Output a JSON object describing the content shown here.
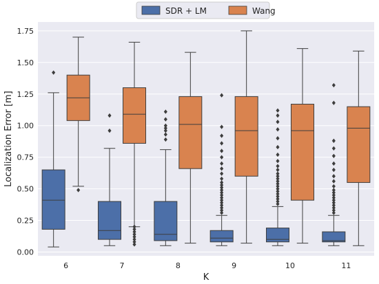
{
  "chart_data": {
    "type": "box",
    "xlabel": "K",
    "ylabel": "Localization Error [m]",
    "categories": [
      "6",
      "7",
      "8",
      "9",
      "10",
      "11"
    ],
    "ylim": [
      -0.03,
      1.82
    ],
    "yticks": [
      "0.00",
      "0.25",
      "0.50",
      "0.75",
      "1.00",
      "1.25",
      "1.50",
      "1.75"
    ],
    "grid": true,
    "legend_position": "top-center",
    "series": [
      {
        "name": "SDR + LM",
        "color": "#4c6fa8",
        "boxes": [
          {
            "min": 0.04,
            "q1": 0.18,
            "median": 0.41,
            "q3": 0.65,
            "max": 1.26,
            "outliers": [
              1.42
            ]
          },
          {
            "min": 0.05,
            "q1": 0.1,
            "median": 0.17,
            "q3": 0.4,
            "max": 0.82,
            "outliers": [
              0.96,
              1.08
            ]
          },
          {
            "min": 0.05,
            "q1": 0.09,
            "median": 0.14,
            "q3": 0.4,
            "max": 0.81,
            "outliers": [
              0.89,
              0.93,
              0.96,
              0.98,
              1.0,
              1.05,
              1.11
            ]
          },
          {
            "min": 0.05,
            "q1": 0.08,
            "median": 0.11,
            "q3": 0.17,
            "max": 0.29,
            "outliers": [
              0.31,
              0.33,
              0.35,
              0.37,
              0.39,
              0.41,
              0.43,
              0.45,
              0.47,
              0.49,
              0.51,
              0.53,
              0.55,
              0.58,
              0.62,
              0.66,
              0.7,
              0.75,
              0.8,
              0.86,
              0.92,
              0.99,
              1.24
            ]
          },
          {
            "min": 0.05,
            "q1": 0.08,
            "median": 0.1,
            "q3": 0.19,
            "max": 0.36,
            "outliers": [
              0.38,
              0.4,
              0.42,
              0.44,
              0.46,
              0.48,
              0.5,
              0.52,
              0.54,
              0.56,
              0.58,
              0.6,
              0.62,
              0.65,
              0.68,
              0.72,
              0.77,
              0.83,
              0.9,
              0.97,
              1.03,
              1.08,
              1.12
            ]
          },
          {
            "min": 0.05,
            "q1": 0.08,
            "median": 0.09,
            "q3": 0.16,
            "max": 0.29,
            "outliers": [
              0.31,
              0.33,
              0.35,
              0.37,
              0.39,
              0.41,
              0.43,
              0.45,
              0.47,
              0.49,
              0.52,
              0.56,
              0.6,
              0.65,
              0.7,
              0.76,
              0.82,
              0.88,
              1.18,
              1.32
            ]
          }
        ]
      },
      {
        "name": "Wang",
        "color": "#d9834f",
        "boxes": [
          {
            "min": 0.52,
            "q1": 1.04,
            "median": 1.22,
            "q3": 1.4,
            "max": 1.7,
            "outliers": [
              0.49
            ]
          },
          {
            "min": 0.2,
            "q1": 0.86,
            "median": 1.09,
            "q3": 1.3,
            "max": 1.66,
            "outliers": [
              0.06,
              0.08,
              0.1,
              0.12,
              0.14,
              0.16,
              0.18,
              0.2
            ]
          },
          {
            "min": 0.07,
            "q1": 0.66,
            "median": 1.01,
            "q3": 1.23,
            "max": 1.58,
            "outliers": []
          },
          {
            "min": 0.07,
            "q1": 0.6,
            "median": 0.96,
            "q3": 1.23,
            "max": 1.75,
            "outliers": []
          },
          {
            "min": 0.07,
            "q1": 0.41,
            "median": 0.96,
            "q3": 1.17,
            "max": 1.61,
            "outliers": []
          },
          {
            "min": 0.05,
            "q1": 0.55,
            "median": 0.98,
            "q3": 1.15,
            "max": 1.59,
            "outliers": []
          }
        ]
      }
    ]
  }
}
